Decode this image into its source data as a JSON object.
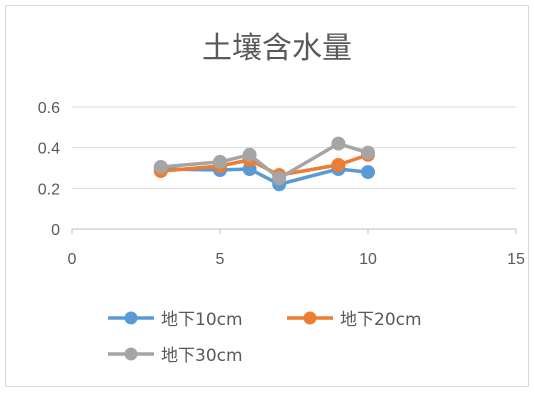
{
  "chart_data": {
    "type": "scatter",
    "title": "土壤含水量",
    "xlim": [
      0,
      15
    ],
    "ylim": [
      0,
      0.6
    ],
    "x_ticks": [
      0,
      5,
      10,
      15
    ],
    "y_ticks": [
      0,
      0.2,
      0.4,
      0.6
    ],
    "x_tick_labels": [
      "0",
      "5",
      "10",
      "15"
    ],
    "y_tick_labels": [
      "0",
      "0.2",
      "0.4",
      "0.6"
    ],
    "grid": "horizontal",
    "legend_position": "bottom",
    "series": [
      {
        "name": "地下10cm",
        "color": "#5B9BD5",
        "x": [
          3,
          5,
          6,
          7,
          9,
          10
        ],
        "y": [
          0.295,
          0.29,
          0.295,
          0.22,
          0.295,
          0.28
        ]
      },
      {
        "name": "地下20cm",
        "color": "#ED7D31",
        "x": [
          3,
          5,
          6,
          7,
          9,
          10
        ],
        "y": [
          0.285,
          0.31,
          0.34,
          0.265,
          0.315,
          0.365
        ]
      },
      {
        "name": "地下30cm",
        "color": "#A5A5A5",
        "x": [
          3,
          5,
          6,
          7,
          9,
          10
        ],
        "y": [
          0.305,
          0.33,
          0.365,
          0.25,
          0.42,
          0.375
        ]
      }
    ]
  }
}
